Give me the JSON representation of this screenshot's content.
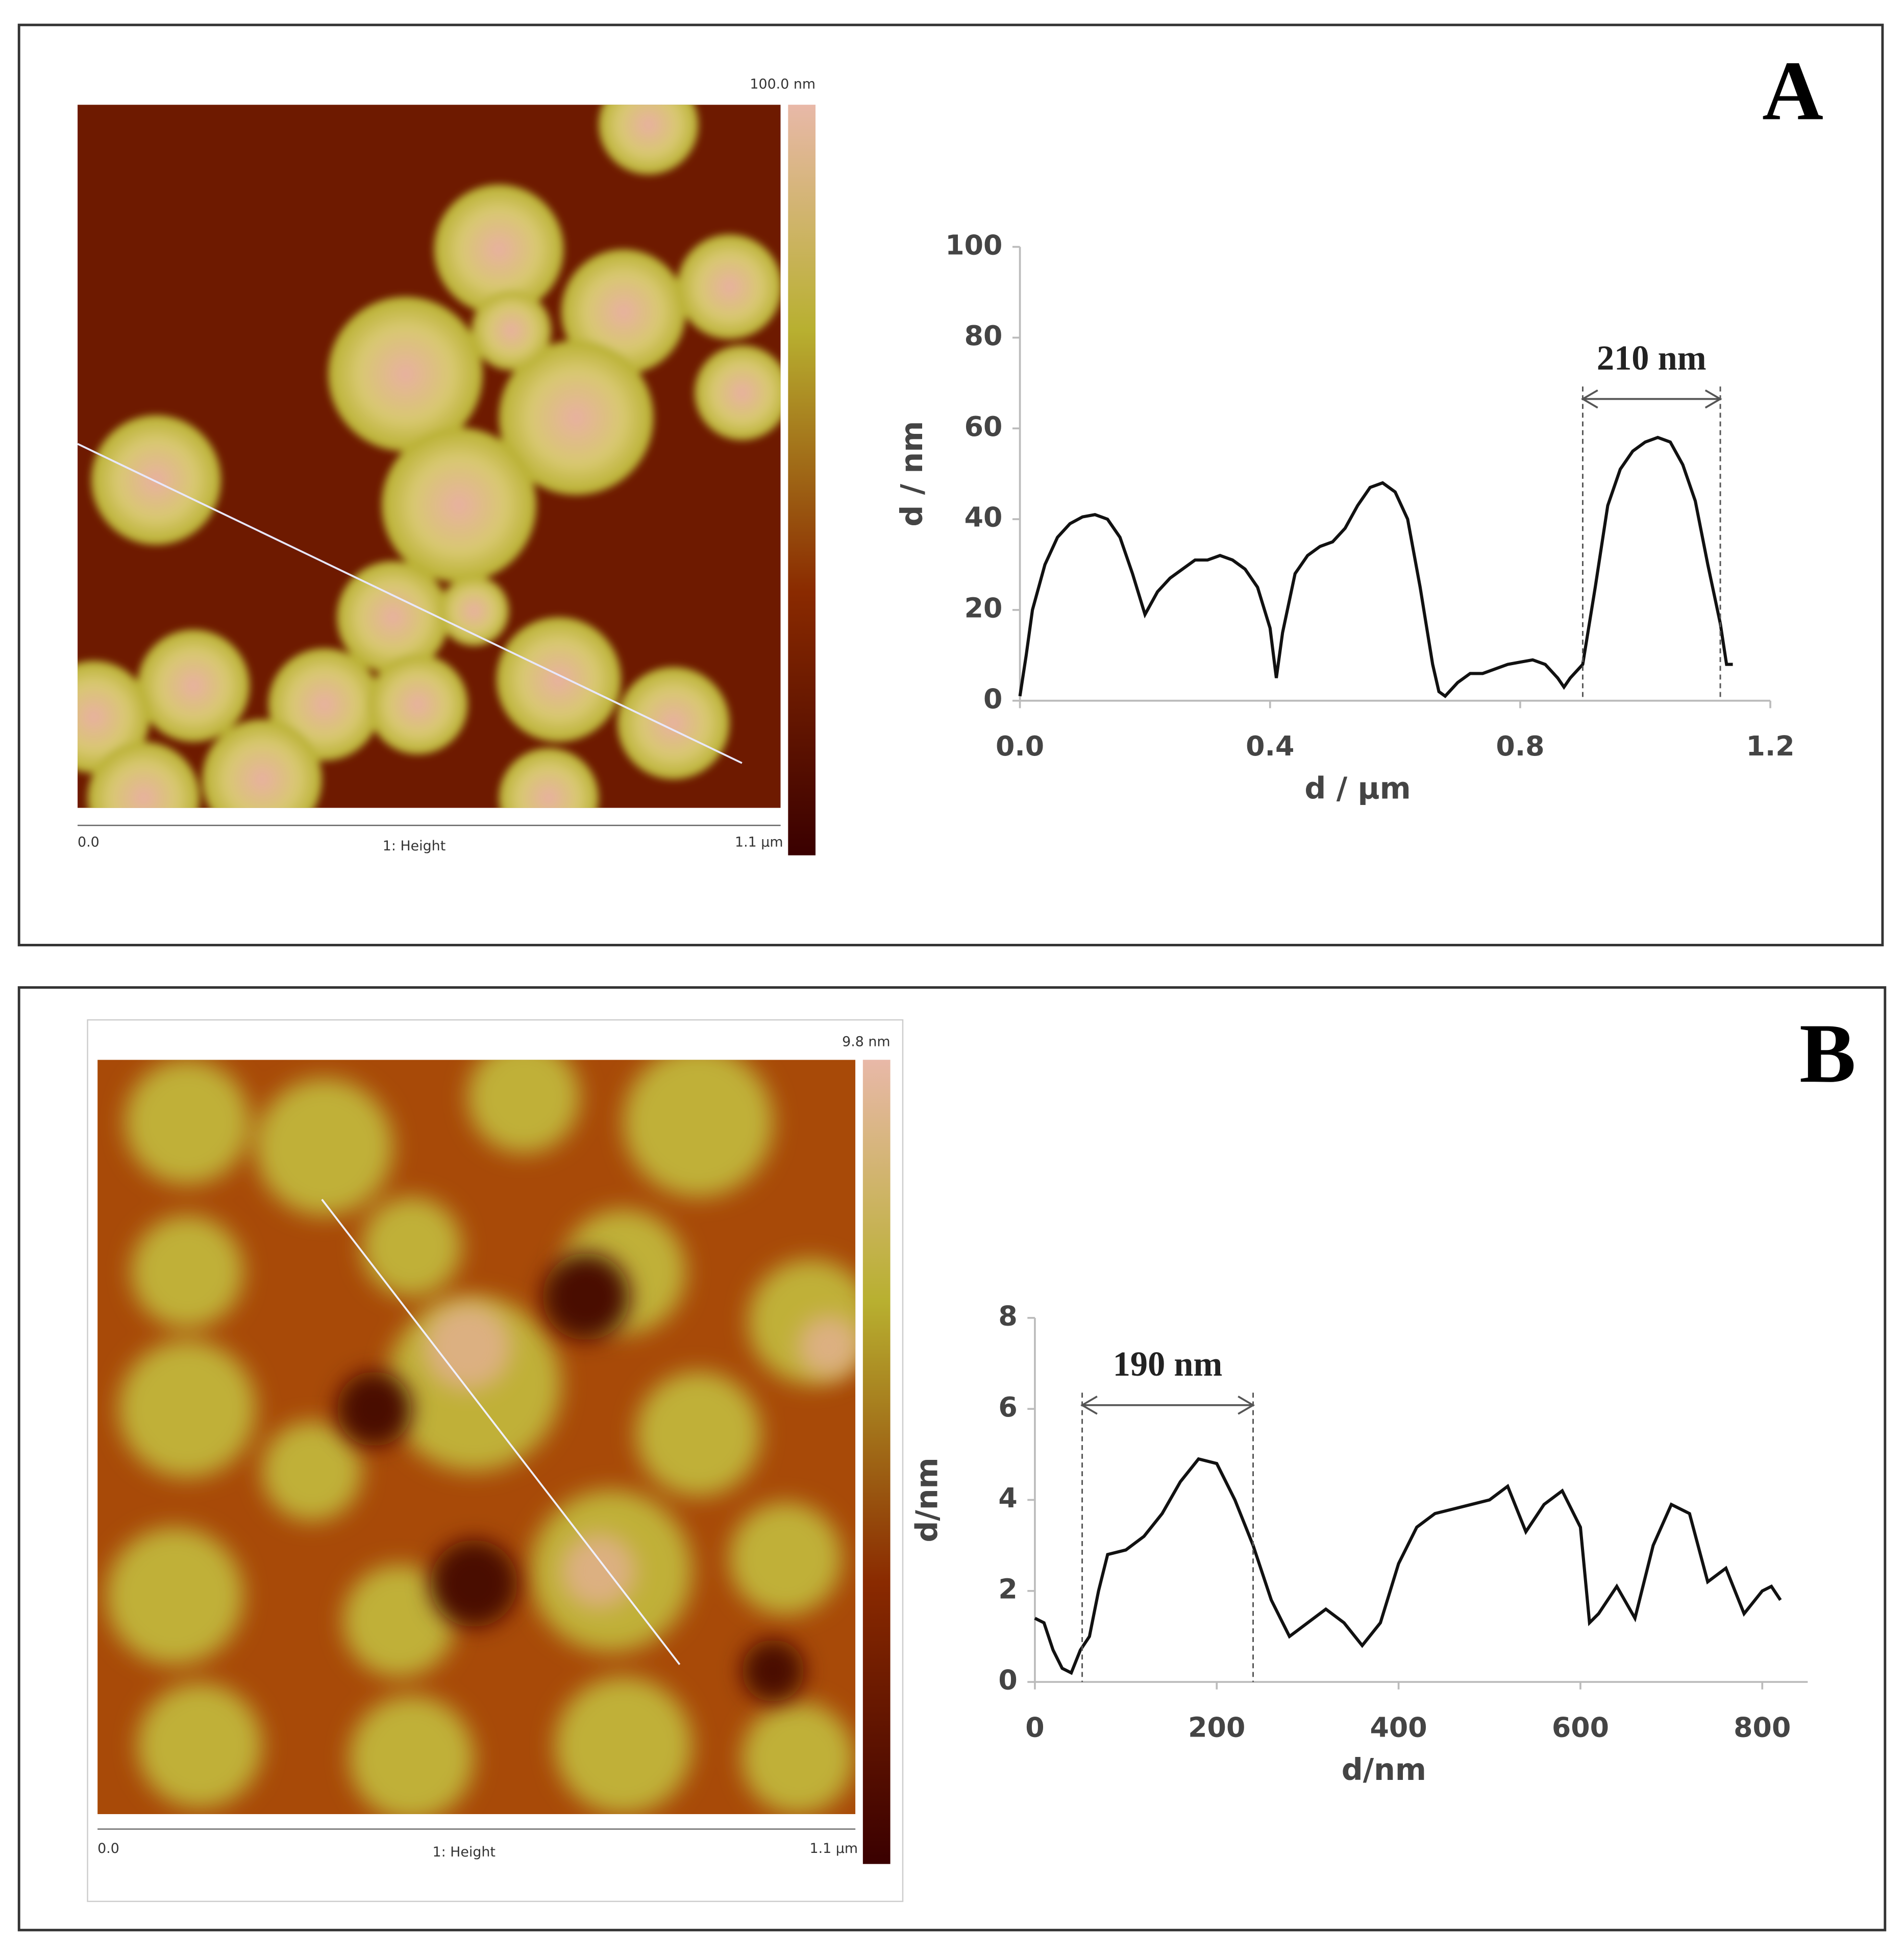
{
  "chart_data": [
    {
      "type": "line",
      "panel_label": "A",
      "color": "#111111",
      "image": {
        "scale_max": "100.0 nm",
        "x_start": "0.0",
        "channel": "1: Height",
        "x_end": "1.1 µm"
      },
      "xlabel": "d / µm",
      "ylabel": "d / nm",
      "annotation": {
        "text": "210 nm",
        "x": [
          0.9,
          1.12
        ]
      },
      "xlim": [
        0,
        1.2
      ],
      "ylim": [
        0,
        100
      ],
      "xticks": [
        {
          "value": 0,
          "label": "0.0"
        },
        0.4,
        0.8,
        1.2
      ],
      "yticks": [
        0,
        20,
        40,
        60,
        80,
        100
      ],
      "x": [
        0,
        0.01,
        0.02,
        0.04,
        0.06,
        0.08,
        0.1,
        0.12,
        0.14,
        0.16,
        0.18,
        0.2,
        0.22,
        0.24,
        0.26,
        0.28,
        0.3,
        0.32,
        0.34,
        0.36,
        0.38,
        0.4,
        0.41,
        0.42,
        0.44,
        0.46,
        0.48,
        0.5,
        0.52,
        0.54,
        0.56,
        0.58,
        0.6,
        0.62,
        0.64,
        0.66,
        0.67,
        0.68,
        0.7,
        0.72,
        0.74,
        0.76,
        0.78,
        0.8,
        0.82,
        0.84,
        0.86,
        0.87,
        0.88,
        0.9,
        0.92,
        0.94,
        0.96,
        0.98,
        1.0,
        1.02,
        1.04,
        1.06,
        1.08,
        1.1,
        1.12,
        1.13,
        1.14
      ],
      "values": [
        1,
        10,
        20,
        30,
        36,
        39,
        40.5,
        41,
        40,
        36,
        28,
        19,
        24,
        27,
        29,
        31,
        31,
        32,
        31,
        29,
        25,
        16,
        5,
        15,
        28,
        32,
        34,
        35,
        38,
        43,
        47,
        48,
        46,
        40,
        25,
        8,
        2,
        1,
        4,
        6,
        6,
        7,
        8,
        8.5,
        9,
        8,
        5,
        3,
        5,
        8,
        25,
        43,
        51,
        55,
        57,
        58,
        57,
        52,
        44,
        30,
        17,
        8,
        8
      ]
    },
    {
      "type": "line",
      "panel_label": "B",
      "color": "#111111",
      "image": {
        "scale_max": "9.8 nm",
        "x_start": "0.0",
        "channel": "1: Height",
        "x_end": "1.1 µm"
      },
      "xlabel": "d/nm",
      "ylabel": "d/nm",
      "annotation": {
        "text": "190 nm",
        "x": [
          52,
          240
        ]
      },
      "xlim": [
        0,
        850
      ],
      "ylim": [
        0,
        8
      ],
      "xticks": [
        0,
        200,
        400,
        600,
        800
      ],
      "yticks": [
        0,
        2,
        4,
        6,
        8
      ],
      "x": [
        0,
        10,
        20,
        30,
        40,
        50,
        60,
        70,
        80,
        100,
        120,
        140,
        160,
        180,
        200,
        220,
        240,
        260,
        280,
        300,
        320,
        340,
        360,
        380,
        400,
        420,
        440,
        460,
        480,
        500,
        520,
        540,
        560,
        580,
        600,
        610,
        620,
        640,
        660,
        680,
        700,
        720,
        740,
        760,
        780,
        800,
        810,
        820
      ],
      "values": [
        1.4,
        1.3,
        0.7,
        0.3,
        0.2,
        0.7,
        1.0,
        2.0,
        2.8,
        2.9,
        3.2,
        3.7,
        4.4,
        4.9,
        4.8,
        4.0,
        3.0,
        1.8,
        1.0,
        1.3,
        1.6,
        1.3,
        0.8,
        1.3,
        2.6,
        3.4,
        3.7,
        3.8,
        3.9,
        4.0,
        4.3,
        3.3,
        3.9,
        4.2,
        3.4,
        1.3,
        1.5,
        2.1,
        1.4,
        3.0,
        3.9,
        3.7,
        2.2,
        2.5,
        1.5,
        2.0,
        2.1,
        1.8
      ]
    }
  ]
}
